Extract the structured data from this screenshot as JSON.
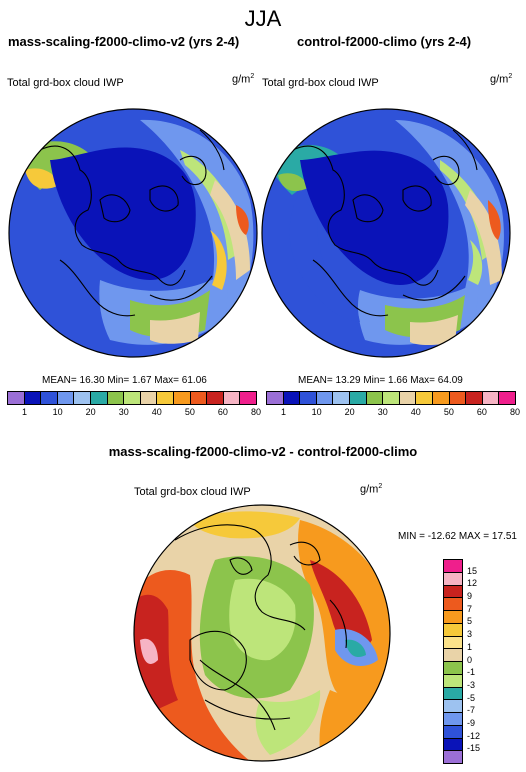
{
  "title": "JJA",
  "panels": [
    {
      "heading": "mass-scaling-f2000-climo-v2 (yrs 2-4)",
      "variable": "Total grd-box cloud IWP",
      "units_base": "g/m",
      "units_exp": "2",
      "stats": "MEAN=  16.30  Min=   1.67  Max=  61.06"
    },
    {
      "heading": "control-f2000-climo (yrs 2-4)",
      "variable": "Total grd-box cloud IWP",
      "units_base": "g/m",
      "units_exp": "2",
      "stats": "MEAN=  13.29  Min=   1.66  Max=  64.09"
    }
  ],
  "colorbar": {
    "labels": [
      "1",
      "10",
      "20",
      "30",
      "40",
      "50",
      "60",
      "80"
    ],
    "colors": [
      "#9b6fd6",
      "#0a13b8",
      "#2f52d8",
      "#6f97ee",
      "#9dc2f0",
      "#2aaaa5",
      "#8cc44c",
      "#bde57a",
      "#e9d3a8",
      "#f6c93a",
      "#f79a1e",
      "#ed5a1e",
      "#c8231f",
      "#f6b4c4",
      "#ef1f8c"
    ]
  },
  "diff": {
    "heading": "mass-scaling-f2000-climo-v2 - control-f2000-climo",
    "variable": "Total grd-box cloud IWP",
    "units_base": "g/m",
    "units_exp": "2",
    "minmax": "MIN = -12.62 MAX =  17.51"
  },
  "legend": {
    "labels": [
      "15",
      "12",
      "9",
      "7",
      "5",
      "3",
      "1",
      "0",
      "-1",
      "-3",
      "-5",
      "-7",
      "-9",
      "-12",
      "-15"
    ],
    "colors": [
      "#ef1f8c",
      "#f6b4c4",
      "#c8231f",
      "#ed5a1e",
      "#f79a1e",
      "#f6c93a",
      "#fbe28a",
      "#e9d3a8",
      "#8cc44c",
      "#bde57a",
      "#2aaaa5",
      "#9dc2f0",
      "#6f97ee",
      "#2f52d8",
      "#0a13b8",
      "#9b6fd6"
    ]
  }
}
